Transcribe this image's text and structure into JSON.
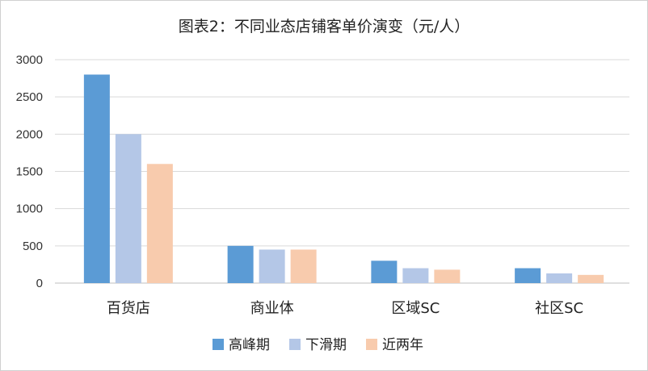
{
  "chart_data": {
    "type": "bar",
    "title": "图表2：不同业态店铺客单价演变（元/人）",
    "categories": [
      "百货店",
      "商业体",
      "区域SC",
      "社区SC"
    ],
    "series": [
      {
        "name": "高峰期",
        "values": [
          2800,
          500,
          300,
          200
        ],
        "color": "#5b9bd5"
      },
      {
        "name": "下滑期",
        "values": [
          2000,
          450,
          200,
          130
        ],
        "color": "#b4c7e7"
      },
      {
        "name": "近两年",
        "values": [
          1600,
          450,
          180,
          110
        ],
        "color": "#f8cbad"
      }
    ],
    "ylim": [
      0,
      3000
    ],
    "yticks": [
      0,
      500,
      1000,
      1500,
      2000,
      2500,
      3000
    ],
    "grid": true,
    "legend": "bottom"
  }
}
